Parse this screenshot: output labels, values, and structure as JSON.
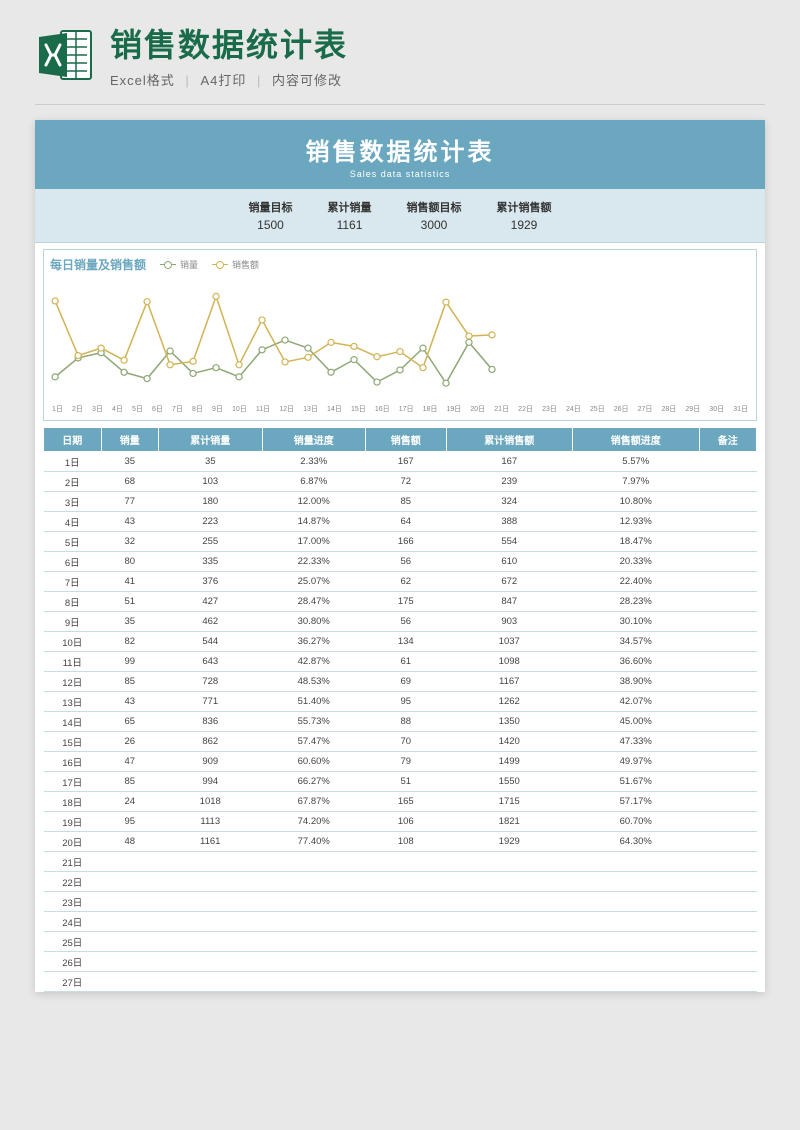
{
  "header": {
    "main_title": "销售数据统计表",
    "subtitle_parts": [
      "Excel格式",
      "A4打印",
      "内容可修改"
    ]
  },
  "banner": {
    "title": "销售数据统计表",
    "subtitle": "Sales data statistics"
  },
  "summary": [
    {
      "label": "销量目标",
      "value": "1500"
    },
    {
      "label": "累计销量",
      "value": "1161"
    },
    {
      "label": "销售额目标",
      "value": "3000"
    },
    {
      "label": "累计销售额",
      "value": "1929"
    }
  ],
  "chart": {
    "title": "每日销量及销售额",
    "legend": [
      {
        "name": "销量",
        "color": "#8fa876"
      },
      {
        "name": "销售额",
        "color": "#d1b456"
      }
    ],
    "type": "line",
    "x_labels": [
      "1日",
      "2日",
      "3日",
      "4日",
      "5日",
      "6日",
      "7日",
      "8日",
      "9日",
      "10日",
      "11日",
      "12日",
      "13日",
      "14日",
      "15日",
      "16日",
      "17日",
      "18日",
      "19日",
      "20日",
      "21日",
      "22日",
      "23日",
      "24日",
      "25日",
      "26日",
      "27日",
      "28日",
      "29日",
      "30日",
      "31日"
    ],
    "series": {
      "销量": {
        "color": "#8fa876",
        "marker": "circle",
        "line_width": 1.5,
        "values": [
          35,
          68,
          77,
          43,
          32,
          80,
          41,
          51,
          35,
          82,
          99,
          85,
          43,
          65,
          26,
          47,
          85,
          24,
          95,
          48
        ]
      },
      "销售额": {
        "color": "#d1b456",
        "marker": "circle",
        "line_width": 1.5,
        "values": [
          167,
          72,
          85,
          64,
          166,
          56,
          62,
          175,
          56,
          134,
          61,
          69,
          95,
          88,
          70,
          79,
          51,
          165,
          106,
          108
        ]
      }
    },
    "y_range": [
      0,
      200
    ],
    "background": "#ffffff"
  },
  "table": {
    "columns": [
      "日期",
      "销量",
      "累计销量",
      "销量进度",
      "销售额",
      "累计销售额",
      "销售额进度",
      "备注"
    ],
    "rows": [
      [
        "1日",
        "35",
        "35",
        "2.33%",
        "167",
        "167",
        "5.57%",
        ""
      ],
      [
        "2日",
        "68",
        "103",
        "6.87%",
        "72",
        "239",
        "7.97%",
        ""
      ],
      [
        "3日",
        "77",
        "180",
        "12.00%",
        "85",
        "324",
        "10.80%",
        ""
      ],
      [
        "4日",
        "43",
        "223",
        "14.87%",
        "64",
        "388",
        "12.93%",
        ""
      ],
      [
        "5日",
        "32",
        "255",
        "17.00%",
        "166",
        "554",
        "18.47%",
        ""
      ],
      [
        "6日",
        "80",
        "335",
        "22.33%",
        "56",
        "610",
        "20.33%",
        ""
      ],
      [
        "7日",
        "41",
        "376",
        "25.07%",
        "62",
        "672",
        "22.40%",
        ""
      ],
      [
        "8日",
        "51",
        "427",
        "28.47%",
        "175",
        "847",
        "28.23%",
        ""
      ],
      [
        "9日",
        "35",
        "462",
        "30.80%",
        "56",
        "903",
        "30.10%",
        ""
      ],
      [
        "10日",
        "82",
        "544",
        "36.27%",
        "134",
        "1037",
        "34.57%",
        ""
      ],
      [
        "11日",
        "99",
        "643",
        "42.87%",
        "61",
        "1098",
        "36.60%",
        ""
      ],
      [
        "12日",
        "85",
        "728",
        "48.53%",
        "69",
        "1167",
        "38.90%",
        ""
      ],
      [
        "13日",
        "43",
        "771",
        "51.40%",
        "95",
        "1262",
        "42.07%",
        ""
      ],
      [
        "14日",
        "65",
        "836",
        "55.73%",
        "88",
        "1350",
        "45.00%",
        ""
      ],
      [
        "15日",
        "26",
        "862",
        "57.47%",
        "70",
        "1420",
        "47.33%",
        ""
      ],
      [
        "16日",
        "47",
        "909",
        "60.60%",
        "79",
        "1499",
        "49.97%",
        ""
      ],
      [
        "17日",
        "85",
        "994",
        "66.27%",
        "51",
        "1550",
        "51.67%",
        ""
      ],
      [
        "18日",
        "24",
        "1018",
        "67.87%",
        "165",
        "1715",
        "57.17%",
        ""
      ],
      [
        "19日",
        "95",
        "1113",
        "74.20%",
        "106",
        "1821",
        "60.70%",
        ""
      ],
      [
        "20日",
        "48",
        "1161",
        "77.40%",
        "108",
        "1929",
        "64.30%",
        ""
      ],
      [
        "21日",
        "",
        "",
        "",
        "",
        "",
        "",
        ""
      ],
      [
        "22日",
        "",
        "",
        "",
        "",
        "",
        "",
        ""
      ],
      [
        "23日",
        "",
        "",
        "",
        "",
        "",
        "",
        ""
      ],
      [
        "24日",
        "",
        "",
        "",
        "",
        "",
        "",
        ""
      ],
      [
        "25日",
        "",
        "",
        "",
        "",
        "",
        "",
        ""
      ],
      [
        "26日",
        "",
        "",
        "",
        "",
        "",
        "",
        ""
      ],
      [
        "27日",
        "",
        "",
        "",
        "",
        "",
        "",
        ""
      ]
    ],
    "header_bg": "#6ba8c0",
    "header_color": "#ffffff",
    "row_border": "#c8dce3"
  },
  "colors": {
    "banner_bg": "#6ba8c0",
    "summary_bg": "#d8e8ee",
    "title_color": "#1a6b4a",
    "page_bg": "#e8e8e8"
  }
}
